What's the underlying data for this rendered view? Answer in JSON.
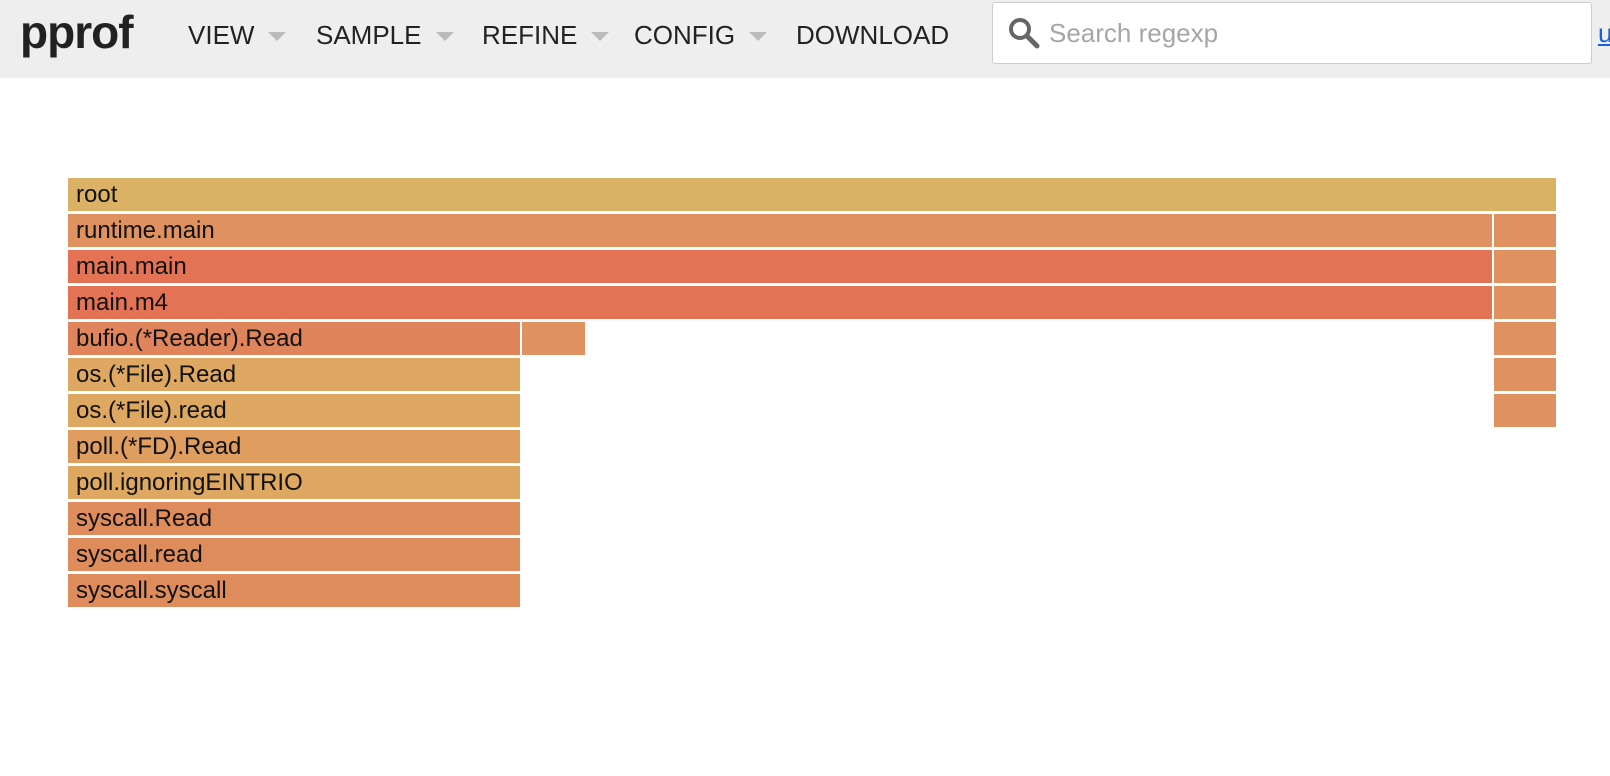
{
  "app": {
    "logo": "pprof"
  },
  "menu": {
    "view": "VIEW",
    "sample": "SAMPLE",
    "refine": "REFINE",
    "config": "CONFIG",
    "download": "DOWNLOAD"
  },
  "search": {
    "placeholder": "Search regexp",
    "value": ""
  },
  "user_link": "u",
  "colors": {
    "topbar_bg": "#eeeeee",
    "caret": "#bbbbbb",
    "link": "#1a5fd6",
    "frame_yellow": "#dbb265",
    "frame_orange": "#df925f",
    "frame_red": "#e47356",
    "frame_tan": "#dea862"
  },
  "flamegraph": {
    "frames": [
      {
        "label": "root",
        "depth": 0,
        "start": 0.0,
        "width": 1.0,
        "color": "#dbb265"
      },
      {
        "label": "runtime.main",
        "depth": 1,
        "start": 0.0,
        "width": 0.957,
        "color": "#df925f"
      },
      {
        "label": "",
        "depth": 1,
        "start": 0.957,
        "width": 0.043,
        "color": "#df925f"
      },
      {
        "label": "main.main",
        "depth": 2,
        "start": 0.0,
        "width": 0.957,
        "color": "#e47356"
      },
      {
        "label": "",
        "depth": 2,
        "start": 0.957,
        "width": 0.043,
        "color": "#df925f"
      },
      {
        "label": "main.m4",
        "depth": 3,
        "start": 0.0,
        "width": 0.957,
        "color": "#e47356"
      },
      {
        "label": "",
        "depth": 3,
        "start": 0.957,
        "width": 0.043,
        "color": "#df925f"
      },
      {
        "label": "bufio.(*Reader).Read",
        "depth": 4,
        "start": 0.0,
        "width": 0.305,
        "color": "#e0855b"
      },
      {
        "label": "",
        "depth": 4,
        "start": 0.305,
        "width": 0.043,
        "color": "#df925f"
      },
      {
        "label": "",
        "depth": 4,
        "start": 0.957,
        "width": 0.043,
        "color": "#df925f"
      },
      {
        "label": "os.(*File).Read",
        "depth": 5,
        "start": 0.0,
        "width": 0.305,
        "color": "#dea862"
      },
      {
        "label": "",
        "depth": 5,
        "start": 0.957,
        "width": 0.043,
        "color": "#df925f"
      },
      {
        "label": "os.(*File).read",
        "depth": 6,
        "start": 0.0,
        "width": 0.305,
        "color": "#dea862"
      },
      {
        "label": "",
        "depth": 6,
        "start": 0.957,
        "width": 0.043,
        "color": "#df925f"
      },
      {
        "label": "poll.(*FD).Read",
        "depth": 7,
        "start": 0.0,
        "width": 0.305,
        "color": "#df9d60"
      },
      {
        "label": "poll.ignoringEINTRIO",
        "depth": 8,
        "start": 0.0,
        "width": 0.305,
        "color": "#dea862"
      },
      {
        "label": "syscall.Read",
        "depth": 9,
        "start": 0.0,
        "width": 0.305,
        "color": "#df8c5d"
      },
      {
        "label": "syscall.read",
        "depth": 10,
        "start": 0.0,
        "width": 0.305,
        "color": "#df8c5d"
      },
      {
        "label": "syscall.syscall",
        "depth": 11,
        "start": 0.0,
        "width": 0.305,
        "color": "#df8c5d"
      }
    ]
  }
}
